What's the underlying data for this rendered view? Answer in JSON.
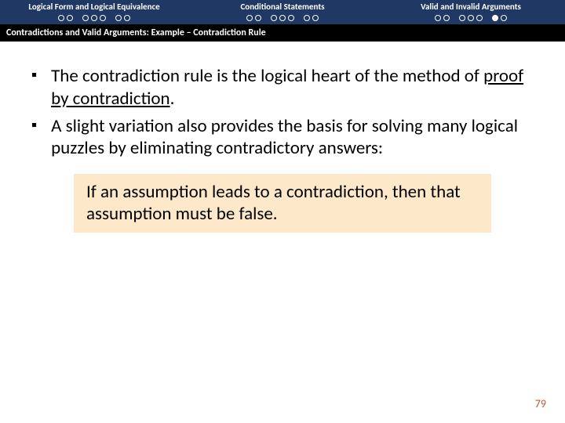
{
  "header": {
    "background_color": "#1f3864",
    "sections": [
      {
        "title": "Logical Form and Logical Equivalence",
        "dot_pattern": [
          0,
          0,
          2,
          0,
          0,
          0,
          2,
          0,
          0
        ]
      },
      {
        "title": "Conditional Statements",
        "dot_pattern": [
          0,
          0,
          2,
          0,
          0,
          0,
          2,
          0,
          0
        ]
      },
      {
        "title": "Valid and Invalid Arguments",
        "dot_pattern": [
          0,
          0,
          2,
          0,
          0,
          0,
          2,
          1,
          0
        ]
      }
    ]
  },
  "subtitle": "Contradictions and Valid Arguments: Example – Contradiction Rule",
  "bullets": [
    {
      "pre": "The contradiction rule is the logical heart of the method of ",
      "link": "proof by contradiction",
      "post": "."
    },
    {
      "pre": "A slight variation also provides the basis for solving many logical puzzles by eliminating contradictory answers:",
      "link": "",
      "post": ""
    }
  ],
  "callout": "If an assumption leads to a contradiction, then that assumption must be false.",
  "page_number": "79",
  "colors": {
    "callout_bg": "#fde9c9",
    "page_num": "#b85c38"
  }
}
